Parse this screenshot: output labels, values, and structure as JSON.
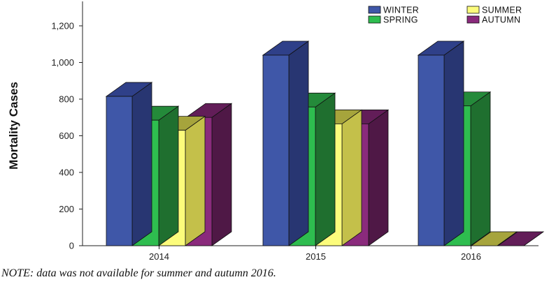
{
  "chart_data": {
    "type": "bar",
    "categories": [
      "2014",
      "2015",
      "2016"
    ],
    "series": [
      {
        "name": "WINTER",
        "values": [
          815,
          1040,
          1040
        ],
        "color": "#3f57a8",
        "shade": "#283672",
        "topc": "#2f4089"
      },
      {
        "name": "SPRING",
        "values": [
          685,
          757,
          763
        ],
        "color": "#2ebd4f",
        "shade": "#1f6f2f",
        "topc": "#248a3a"
      },
      {
        "name": "SUMMER",
        "values": [
          630,
          665,
          0
        ],
        "color": "#fcfc7c",
        "shade": "#c4c04a",
        "topc": "#a6a43c"
      },
      {
        "name": "AUTUMN",
        "values": [
          700,
          665,
          0
        ],
        "color": "#8a2a7c",
        "shade": "#4f1846",
        "topc": "#621d58"
      }
    ],
    "ylabel": "Mortality Cases",
    "xlabel": "",
    "title": "",
    "ylim": [
      0,
      1300
    ],
    "yticks": [
      "0",
      "200",
      "400",
      "600",
      "800",
      "1,000",
      "1,200"
    ],
    "ytick_values": [
      0,
      200,
      400,
      600,
      800,
      1000,
      1200
    ],
    "legend_position": "top-right",
    "grid": false,
    "three_d": true
  },
  "note": "NOTE: data was not available for summer and autumn 2016."
}
